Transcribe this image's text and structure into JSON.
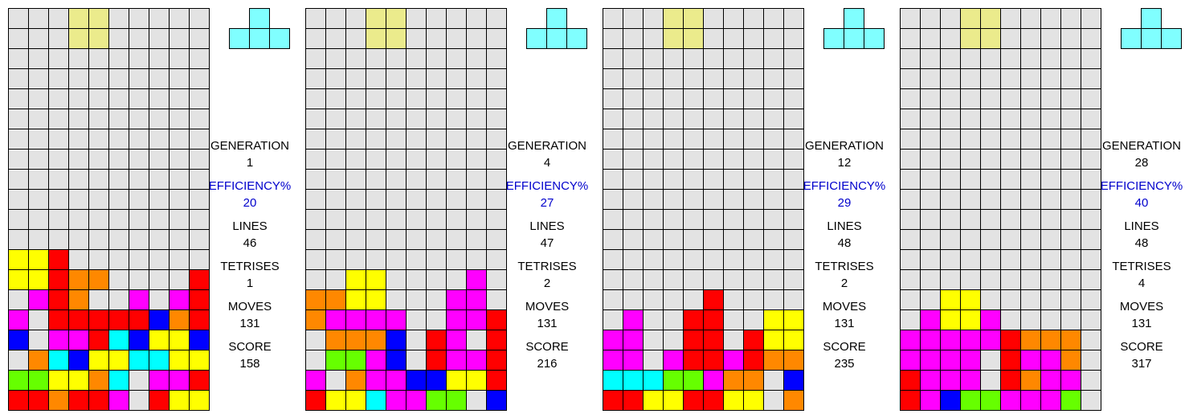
{
  "app": {
    "description": "Four Tetris simulation boards with generation statistics",
    "board_columns": 10,
    "board_rows": 20
  },
  "colors": {
    "background": "#ffffff",
    "grid_line": "#000000",
    "text_default": "#000000",
    "text_accent_blue": "#0000cc",
    "cell_palette": {
      ".": "#e3e3e3",
      "P": "#ebeb8c",
      "Y": "#ffff00",
      "R": "#ff0000",
      "O": "#ff8800",
      "M": "#ff00ff",
      "B": "#0000ff",
      "C": "#00ffff",
      "G": "#66ff00",
      "T": "#80ffff"
    },
    "palette_names": {
      ".": "empty-gray",
      "P": "current-piece-pale-yellow",
      "Y": "yellow-block",
      "R": "red-block",
      "O": "orange-block",
      "M": "magenta-block",
      "B": "blue-block",
      "C": "cyan-block",
      "G": "green-block",
      "T": "preview-light-cyan"
    }
  },
  "preview": {
    "piece_name": "t-piece-left",
    "color_code": "T",
    "cells": [
      [
        1,
        0
      ],
      [
        0,
        1
      ],
      [
        1,
        1
      ],
      [
        2,
        1
      ]
    ]
  },
  "stats_order": [
    {
      "key": "generation",
      "label": "GENERATION",
      "color": "#000000"
    },
    {
      "key": "efficiency",
      "label": "EFFICIENCY%",
      "color": "#0000cc"
    },
    {
      "key": "lines",
      "label": "LINES",
      "color": "#000000"
    },
    {
      "key": "tetrises",
      "label": "TETRISES",
      "color": "#000000"
    },
    {
      "key": "moves",
      "label": "MOVES",
      "color": "#000000"
    },
    {
      "key": "score",
      "label": "SCORE",
      "color": "#000000"
    }
  ],
  "panels": [
    {
      "stats": {
        "generation": "1",
        "efficiency": "20",
        "lines": "46",
        "tetrises": "1",
        "moves": "131",
        "score": "158"
      },
      "board": [
        "...PP.....",
        "...PP.....",
        "..........",
        "..........",
        "..........",
        "..........",
        "..........",
        "..........",
        "..........",
        "..........",
        "..........",
        "..........",
        "YYR.......",
        "YYROO....R",
        ".MRO..M.MR",
        "M.RRRRRBOR",
        "B.MMRCBYYB",
        ".OCBYYCCYY",
        "GGYYOC.MMR",
        "RRORRM.RYY"
      ]
    },
    {
      "stats": {
        "generation": "4",
        "efficiency": "27",
        "lines": "47",
        "tetrises": "2",
        "moves": "131",
        "score": "216"
      },
      "board": [
        "...PP.....",
        "...PP.....",
        "..........",
        "..........",
        "..........",
        "..........",
        "..........",
        "..........",
        "..........",
        "..........",
        "..........",
        "..........",
        "..........",
        "..YY....M.",
        "OOYY...MM.",
        "OMMMM..MMR",
        ".OOOB.RM.R",
        ".GGMB.RMMR",
        "M.OMMBBYYR",
        "RYYCMMGG.B"
      ]
    },
    {
      "stats": {
        "generation": "12",
        "efficiency": "29",
        "lines": "48",
        "tetrises": "2",
        "moves": "131",
        "score": "235"
      },
      "board": [
        "...PP.....",
        "...PP.....",
        "..........",
        "..........",
        "..........",
        "..........",
        "..........",
        "..........",
        "..........",
        "..........",
        "..........",
        "..........",
        "..........",
        "..........",
        ".....R....",
        ".M..RR..YY",
        "MM..RR.RYY",
        "MM.MRRMROO",
        "CCCGGMOO.B",
        "RRYYRRYY.O"
      ]
    },
    {
      "stats": {
        "generation": "28",
        "efficiency": "40",
        "lines": "48",
        "tetrises": "4",
        "moves": "131",
        "score": "317"
      },
      "board": [
        "...PP.....",
        "...PP.....",
        "..........",
        "..........",
        "..........",
        "..........",
        "..........",
        "..........",
        "..........",
        "..........",
        "..........",
        "..........",
        "..........",
        "..........",
        "..YY......",
        ".MYYM.....",
        "MMMMMROOO.",
        "MMMM.RMMO.",
        "RMMM.ROMM.",
        "RMBGGMMMG."
      ]
    }
  ]
}
